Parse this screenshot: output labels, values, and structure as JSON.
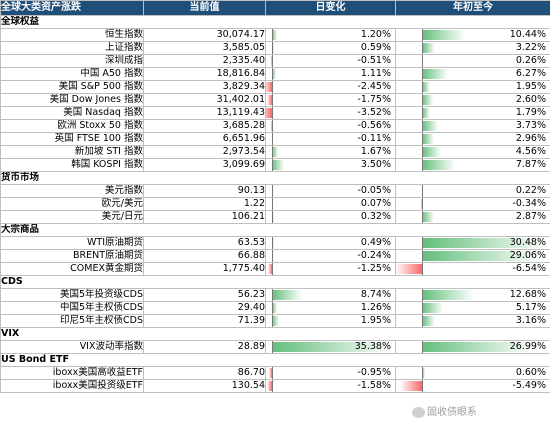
{
  "header": {
    "title": "全球大类资产涨跌",
    "col_current": "当前值",
    "col_day": "日变化",
    "col_ytd": "年初至今"
  },
  "sections": [
    {
      "name": "全球权益",
      "rows": [
        {
          "name": "恒生指数",
          "value": "30,074.17",
          "day": "1.20%",
          "day_num": 1.2,
          "ytd": "10.44%",
          "ytd_num": 10.44
        },
        {
          "name": "上证指数",
          "value": "3,585.05",
          "day": "0.59%",
          "day_num": 0.59,
          "ytd": "3.22%",
          "ytd_num": 3.22
        },
        {
          "name": "深圳成指",
          "value": "2,335.40",
          "day": "-0.51%",
          "day_num": -0.51,
          "ytd": "0.26%",
          "ytd_num": 0.26
        },
        {
          "name": "中国 A50 指数",
          "value": "18,816.84",
          "day": "1.11%",
          "day_num": 1.11,
          "ytd": "6.27%",
          "ytd_num": 6.27
        },
        {
          "name": "美国 S&P 500 指数",
          "value": "3,829.34",
          "day": "-2.45%",
          "day_num": -2.45,
          "ytd": "1.95%",
          "ytd_num": 1.95
        },
        {
          "name": "美国 Dow Jones 指数",
          "value": "31,402.01",
          "day": "-1.75%",
          "day_num": -1.75,
          "ytd": "2.60%",
          "ytd_num": 2.6
        },
        {
          "name": "美国 Nasdaq 指数",
          "value": "13,119.43",
          "day": "-3.52%",
          "day_num": -3.52,
          "ytd": "1.79%",
          "ytd_num": 1.79
        },
        {
          "name": "欧洲 Stoxx 50 指数",
          "value": "3,685.28",
          "day": "-0.56%",
          "day_num": -0.56,
          "ytd": "3.73%",
          "ytd_num": 3.73
        },
        {
          "name": "英国 FTSE 100 指数",
          "value": "6,651.96",
          "day": "-0.11%",
          "day_num": -0.11,
          "ytd": "2.96%",
          "ytd_num": 2.96
        },
        {
          "name": "新加坡 STI 指数",
          "value": "2,973.54",
          "day": "1.67%",
          "day_num": 1.67,
          "ytd": "4.56%",
          "ytd_num": 4.56
        },
        {
          "name": "韩国 KOSPI 指数",
          "value": "3,099.69",
          "day": "3.50%",
          "day_num": 3.5,
          "ytd": "7.87%",
          "ytd_num": 7.87
        }
      ]
    },
    {
      "name": "货币市场",
      "rows": [
        {
          "name": "美元指数",
          "value": "90.13",
          "day": "-0.05%",
          "day_num": -0.05,
          "ytd": "0.22%",
          "ytd_num": 0.22
        },
        {
          "name": "欧元/美元",
          "value": "1.22",
          "day": "0.07%",
          "day_num": 0.07,
          "ytd": "-0.34%",
          "ytd_num": -0.34
        },
        {
          "name": "美元/日元",
          "value": "106.21",
          "day": "0.32%",
          "day_num": 0.32,
          "ytd": "2.87%",
          "ytd_num": 2.87
        }
      ]
    },
    {
      "name": "大宗商品",
      "rows": [
        {
          "name": "WTI原油期货",
          "value": "63.53",
          "day": "0.49%",
          "day_num": 0.49,
          "ytd": "30.48%",
          "ytd_num": 30.48
        },
        {
          "name": "BRENT原油期货",
          "value": "66.88",
          "day": "-0.24%",
          "day_num": -0.24,
          "ytd": "29.06%",
          "ytd_num": 29.06
        },
        {
          "name": "COMEX黄金期货",
          "value": "1,775.40",
          "day": "-1.25%",
          "day_num": -1.25,
          "ytd": "-6.54%",
          "ytd_num": -6.54
        }
      ]
    },
    {
      "name": "CDS",
      "rows": [
        {
          "name": "美国5年投资级CDS",
          "value": "56.23",
          "day": "8.74%",
          "day_num": 8.74,
          "ytd": "12.68%",
          "ytd_num": 12.68
        },
        {
          "name": "中国5年主权债CDS",
          "value": "29.40",
          "day": "1.26%",
          "day_num": 1.26,
          "ytd": "5.17%",
          "ytd_num": 5.17
        },
        {
          "name": "印尼5年主权债CDS",
          "value": "71.39",
          "day": "1.95%",
          "day_num": 1.95,
          "ytd": "3.16%",
          "ytd_num": 3.16
        }
      ]
    },
    {
      "name": "VIX",
      "rows": [
        {
          "name": "VIX波动率指数",
          "value": "28.89",
          "day": "35.38%",
          "day_num": 35.38,
          "ytd": "26.99%",
          "ytd_num": 26.99
        }
      ]
    },
    {
      "name": "US Bond ETF",
      "rows": [
        {
          "name": "iboxx美国高收益ETF",
          "value": "86.70",
          "day": "-0.95%",
          "day_num": -0.95,
          "ytd": "0.60%",
          "ytd_num": 0.6
        },
        {
          "name": "iboxx美国投资级ETF",
          "value": "130.54",
          "day": "-1.58%",
          "day_num": -1.58,
          "ytd": "-5.49%",
          "ytd_num": -5.49
        }
      ]
    }
  ],
  "watermark": "固收债眼系",
  "colors": {
    "header_bg": "#1f4e79",
    "positive_bar": "#63be7b",
    "negative_bar": "#f8696b"
  }
}
